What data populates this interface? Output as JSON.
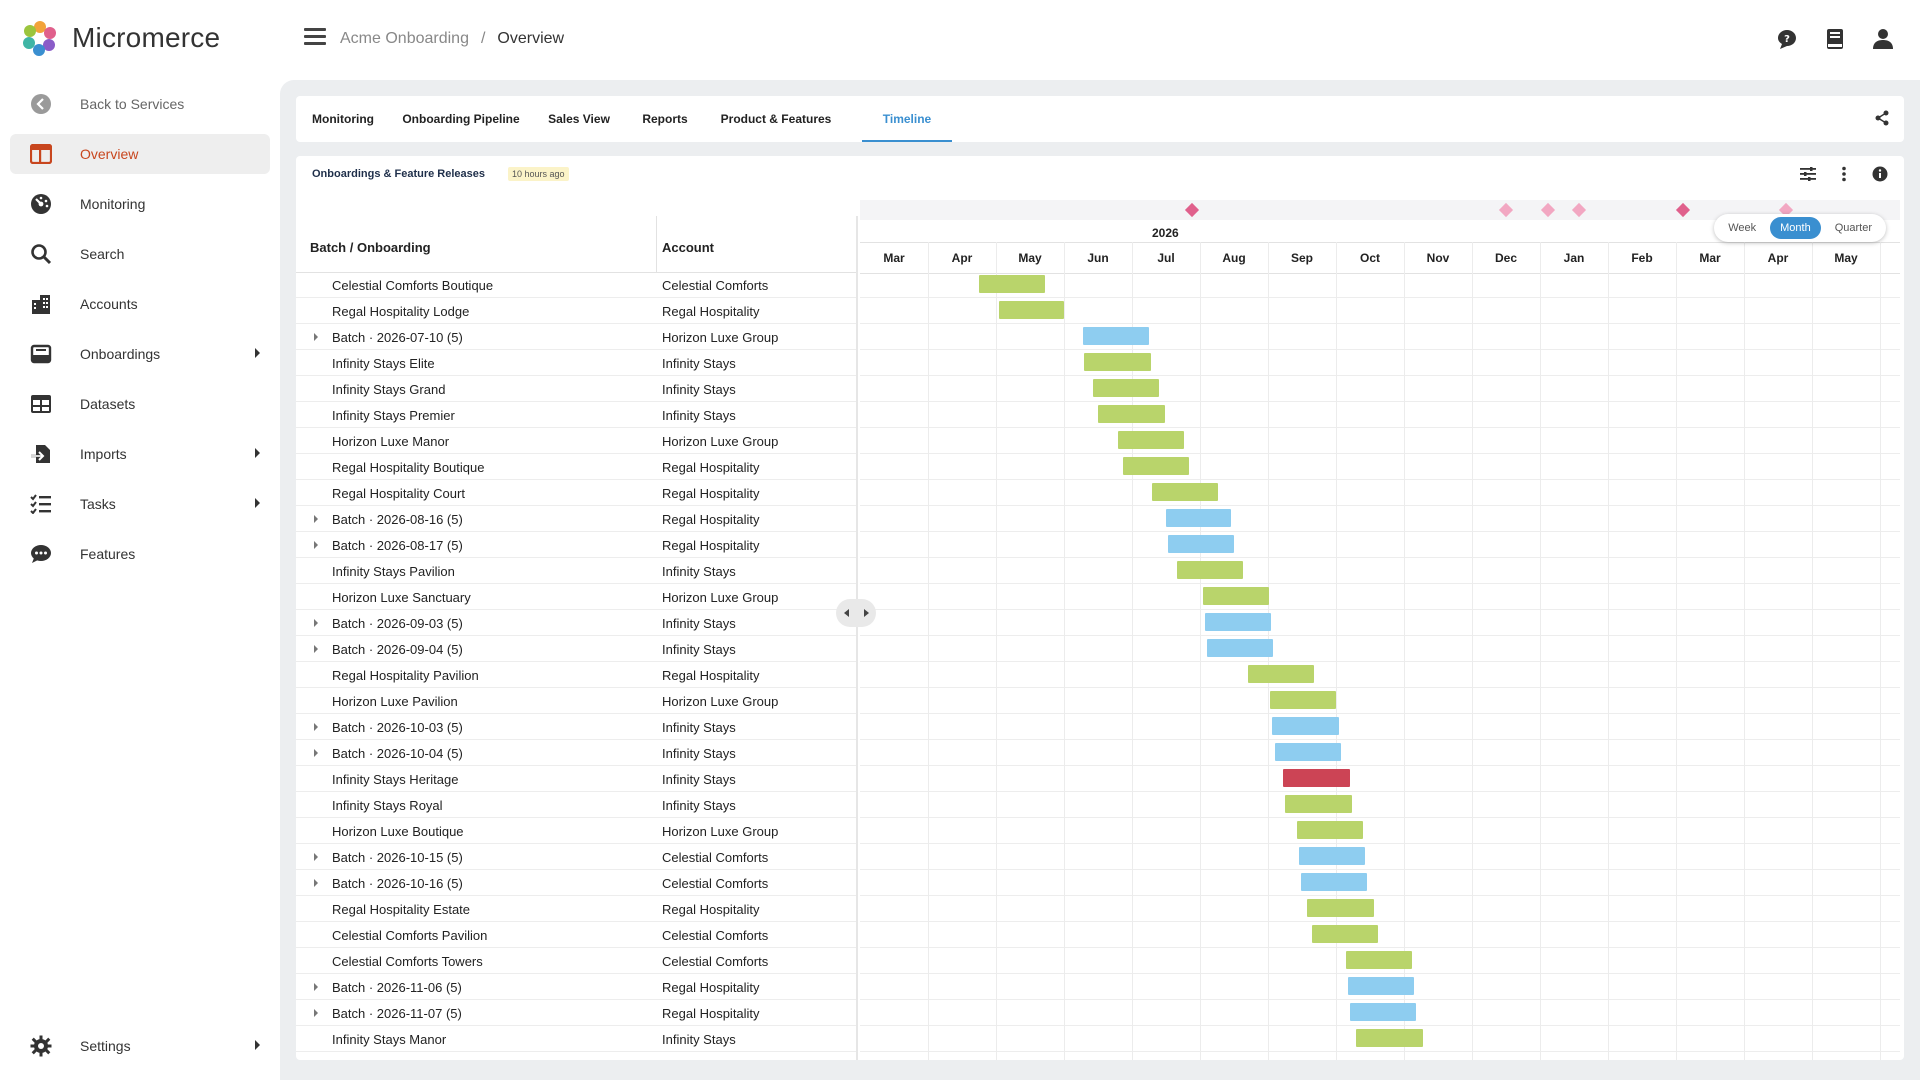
{
  "app": {
    "name": "Micromerce"
  },
  "sidebar": {
    "back_label": "Back to Services",
    "items": [
      {
        "label": "Overview",
        "icon": "overview-icon",
        "active": true
      },
      {
        "label": "Monitoring",
        "icon": "monitoring-icon"
      },
      {
        "label": "Search",
        "icon": "search-icon"
      },
      {
        "label": "Accounts",
        "icon": "accounts-icon"
      },
      {
        "label": "Onboardings",
        "icon": "onboardings-icon",
        "submenu": true
      },
      {
        "label": "Datasets",
        "icon": "datasets-icon"
      },
      {
        "label": "Imports",
        "icon": "imports-icon",
        "submenu": true
      },
      {
        "label": "Tasks",
        "icon": "tasks-icon",
        "submenu": true
      },
      {
        "label": "Features",
        "icon": "features-icon"
      }
    ],
    "settings_label": "Settings"
  },
  "breadcrumb": {
    "parent": "Acme Onboarding",
    "separator": "/",
    "current": "Overview"
  },
  "tabs": [
    "Monitoring",
    "Onboarding Pipeline",
    "Sales View",
    "Reports",
    "Product & Features",
    "Timeline"
  ],
  "active_tab": "Timeline",
  "panel": {
    "title": "Onboardings & Feature Releases",
    "updated": "10 hours ago"
  },
  "table": {
    "col1": "Batch / Onboarding",
    "col2": "Account"
  },
  "timeline": {
    "year_label": "2026",
    "months": [
      "Mar",
      "Apr",
      "May",
      "Jun",
      "Jul",
      "Aug",
      "Sep",
      "Oct",
      "Nov",
      "Dec",
      "Jan",
      "Feb",
      "Mar",
      "Apr",
      "May"
    ],
    "zoom_options": [
      "Week",
      "Month",
      "Quarter"
    ],
    "zoom_selected": "Month",
    "colors": {
      "onboarding": "#b9d46b",
      "batch": "#8ecdf0",
      "alert": "#cc4455",
      "milestone": "#e0608c",
      "milestone_light": "#f2a7c2"
    }
  },
  "rows": [
    {
      "name": "Celestial Comforts Boutique",
      "account": "Celestial Comforts",
      "batch": false,
      "start": 1.75,
      "end": 2.72,
      "status": "onboarding"
    },
    {
      "name": "Regal Hospitality Lodge",
      "account": "Regal Hospitality",
      "batch": false,
      "start": 2.05,
      "end": 3.0,
      "status": "onboarding"
    },
    {
      "name": "Batch · 2026-07-10 (5)",
      "account": "Horizon Luxe Group",
      "batch": true,
      "start": 3.28,
      "end": 4.25,
      "status": "batch"
    },
    {
      "name": "Infinity Stays Elite",
      "account": "Infinity Stays",
      "batch": false,
      "start": 3.3,
      "end": 4.28,
      "status": "onboarding"
    },
    {
      "name": "Infinity Stays Grand",
      "account": "Infinity Stays",
      "batch": false,
      "start": 3.42,
      "end": 4.4,
      "status": "onboarding"
    },
    {
      "name": "Infinity Stays Premier",
      "account": "Infinity Stays",
      "batch": false,
      "start": 3.5,
      "end": 4.48,
      "status": "onboarding"
    },
    {
      "name": "Horizon Luxe Manor",
      "account": "Horizon Luxe Group",
      "batch": false,
      "start": 3.8,
      "end": 4.76,
      "status": "onboarding"
    },
    {
      "name": "Regal Hospitality Boutique",
      "account": "Regal Hospitality",
      "batch": false,
      "start": 3.87,
      "end": 4.84,
      "status": "onboarding"
    },
    {
      "name": "Regal Hospitality Court",
      "account": "Regal Hospitality",
      "batch": false,
      "start": 4.3,
      "end": 5.27,
      "status": "onboarding"
    },
    {
      "name": "Batch · 2026-08-16 (5)",
      "account": "Regal Hospitality",
      "batch": true,
      "start": 4.5,
      "end": 5.46,
      "status": "batch"
    },
    {
      "name": "Batch · 2026-08-17 (5)",
      "account": "Regal Hospitality",
      "batch": true,
      "start": 4.53,
      "end": 5.5,
      "status": "batch"
    },
    {
      "name": "Infinity Stays Pavilion",
      "account": "Infinity Stays",
      "batch": false,
      "start": 4.66,
      "end": 5.63,
      "status": "onboarding"
    },
    {
      "name": "Horizon Luxe Sanctuary",
      "account": "Horizon Luxe Group",
      "batch": false,
      "start": 5.05,
      "end": 6.02,
      "status": "onboarding"
    },
    {
      "name": "Batch · 2026-09-03 (5)",
      "account": "Infinity Stays",
      "batch": true,
      "start": 5.08,
      "end": 6.05,
      "status": "batch"
    },
    {
      "name": "Batch · 2026-09-04 (5)",
      "account": "Infinity Stays",
      "batch": true,
      "start": 5.11,
      "end": 6.08,
      "status": "batch"
    },
    {
      "name": "Regal Hospitality Pavilion",
      "account": "Regal Hospitality",
      "batch": false,
      "start": 5.7,
      "end": 6.68,
      "status": "onboarding"
    },
    {
      "name": "Horizon Luxe Pavilion",
      "account": "Horizon Luxe Group",
      "batch": false,
      "start": 6.03,
      "end": 7.0,
      "status": "onboarding"
    },
    {
      "name": "Batch · 2026-10-03 (5)",
      "account": "Infinity Stays",
      "batch": true,
      "start": 6.06,
      "end": 7.04,
      "status": "batch"
    },
    {
      "name": "Batch · 2026-10-04 (5)",
      "account": "Infinity Stays",
      "batch": true,
      "start": 6.1,
      "end": 7.08,
      "status": "batch"
    },
    {
      "name": "Infinity Stays Heritage",
      "account": "Infinity Stays",
      "batch": false,
      "start": 6.22,
      "end": 7.2,
      "status": "alert"
    },
    {
      "name": "Infinity Stays Royal",
      "account": "Infinity Stays",
      "batch": false,
      "start": 6.25,
      "end": 7.23,
      "status": "onboarding"
    },
    {
      "name": "Horizon Luxe Boutique",
      "account": "Horizon Luxe Group",
      "batch": false,
      "start": 6.42,
      "end": 7.4,
      "status": "onboarding"
    },
    {
      "name": "Batch · 2026-10-15 (5)",
      "account": "Celestial Comforts",
      "batch": true,
      "start": 6.45,
      "end": 7.43,
      "status": "batch"
    },
    {
      "name": "Batch · 2026-10-16 (5)",
      "account": "Celestial Comforts",
      "batch": true,
      "start": 6.48,
      "end": 7.46,
      "status": "batch"
    },
    {
      "name": "Regal Hospitality Estate",
      "account": "Regal Hospitality",
      "batch": false,
      "start": 6.58,
      "end": 7.56,
      "status": "onboarding"
    },
    {
      "name": "Celestial Comforts Pavilion",
      "account": "Celestial Comforts",
      "batch": false,
      "start": 6.64,
      "end": 7.62,
      "status": "onboarding"
    },
    {
      "name": "Celestial Comforts Towers",
      "account": "Celestial Comforts",
      "batch": false,
      "start": 7.14,
      "end": 8.12,
      "status": "onboarding"
    },
    {
      "name": "Batch · 2026-11-06 (5)",
      "account": "Regal Hospitality",
      "batch": true,
      "start": 7.17,
      "end": 8.15,
      "status": "batch"
    },
    {
      "name": "Batch · 2026-11-07 (5)",
      "account": "Regal Hospitality",
      "batch": true,
      "start": 7.2,
      "end": 8.18,
      "status": "batch"
    },
    {
      "name": "Infinity Stays Manor",
      "account": "Infinity Stays",
      "batch": false,
      "start": 7.3,
      "end": 8.28,
      "status": "onboarding"
    }
  ],
  "milestones": [
    {
      "pos": 4.88,
      "tone": "milestone"
    },
    {
      "pos": 9.5,
      "tone": "milestone_light"
    },
    {
      "pos": 10.12,
      "tone": "milestone_light"
    },
    {
      "pos": 10.58,
      "tone": "milestone_light"
    },
    {
      "pos": 12.1,
      "tone": "milestone"
    },
    {
      "pos": 13.62,
      "tone": "milestone_light"
    }
  ]
}
